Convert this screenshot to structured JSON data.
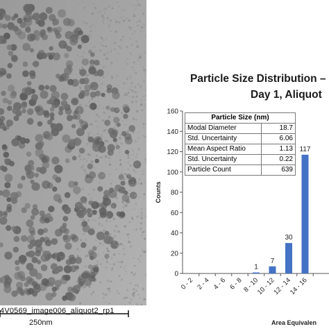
{
  "micrograph": {
    "caption": "4V0569_image006_aliquot2_rp1",
    "scale_bar_label": "250nm"
  },
  "table": {
    "header": "Particle Size (nm)",
    "rows": [
      {
        "label": "Modal Diameter",
        "value": "18.7"
      },
      {
        "label": "Std. Uncertainty",
        "value": "6.06"
      },
      {
        "label": "Mean Aspect Ratio",
        "value": "1.13"
      },
      {
        "label": "Std. Uncertainty",
        "value": "0.22"
      },
      {
        "label": "Particle Count",
        "value": "639"
      }
    ]
  },
  "chart_data": {
    "type": "bar",
    "title_lines": [
      "Particle Size Distribution –",
      "Day 1, Aliquot"
    ],
    "ylabel": "Counts",
    "xlabel": "Area Equivalen",
    "ylim": [
      0,
      160
    ],
    "yticks": [
      0,
      20,
      40,
      60,
      80,
      100,
      120,
      140,
      160
    ],
    "categories": [
      "0 - 2",
      "2 - 4",
      "4 - 6",
      "6 - 8",
      "8 - 10",
      "10 - 12",
      "12 - 14",
      "14 - 16"
    ],
    "values": [
      0,
      0,
      0,
      0,
      1,
      7,
      30,
      117
    ],
    "data_labels": [
      "",
      "",
      "",
      "",
      "1",
      "7",
      "30",
      "117"
    ],
    "bar_color": "#4472c4",
    "grid": false
  }
}
